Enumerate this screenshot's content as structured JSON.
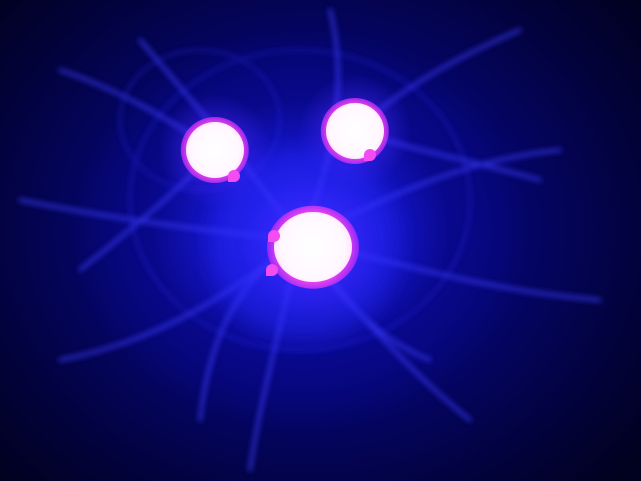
{
  "scene": {
    "subject": "three-glowing-orbs",
    "colors": {
      "background_dark": "#010120",
      "background_mid": "#050570",
      "ambient_glow": "#2828ff",
      "tendril": "#3c3cff",
      "orb_rim": "#ee44ee",
      "orb_core": "#ffffff"
    },
    "orbs": [
      {
        "name": "orb-upper-left"
      },
      {
        "name": "orb-upper-right"
      },
      {
        "name": "orb-lower-center"
      }
    ]
  }
}
